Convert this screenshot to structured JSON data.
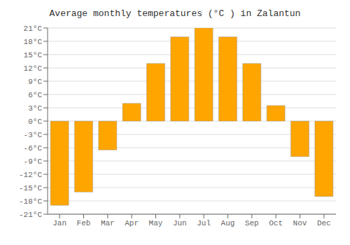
{
  "chart_data": {
    "type": "bar",
    "title": "Average monthly temperatures (°C ) in Zalantun",
    "categories": [
      "Jan",
      "Feb",
      "Mar",
      "Apr",
      "May",
      "Jun",
      "Jul",
      "Aug",
      "Sep",
      "Oct",
      "Nov",
      "Dec"
    ],
    "values": [
      -19,
      -16,
      -6.5,
      4,
      13,
      19,
      21,
      19,
      13,
      3.5,
      -8,
      -17
    ],
    "color": "#FFA500",
    "ylim": [
      -21,
      21
    ],
    "yticks": [
      {
        "value": -21,
        "label": "-21°C"
      },
      {
        "value": -18,
        "label": "-18°C"
      },
      {
        "value": -15,
        "label": "-15°C"
      },
      {
        "value": -12,
        "label": "-12°C"
      },
      {
        "value": -9,
        "label": "-9°C"
      },
      {
        "value": -6,
        "label": "-6°C"
      },
      {
        "value": -3,
        "label": "-3°C"
      },
      {
        "value": 0,
        "label": "0°C"
      },
      {
        "value": 3,
        "label": "3°C"
      },
      {
        "value": 6,
        "label": "6°C"
      },
      {
        "value": 9,
        "label": "9°C"
      },
      {
        "value": 12,
        "label": "12°C"
      },
      {
        "value": 15,
        "label": "15°C"
      },
      {
        "value": 18,
        "label": "18°C"
      },
      {
        "value": 21,
        "label": "21°C"
      }
    ],
    "grid": true
  }
}
